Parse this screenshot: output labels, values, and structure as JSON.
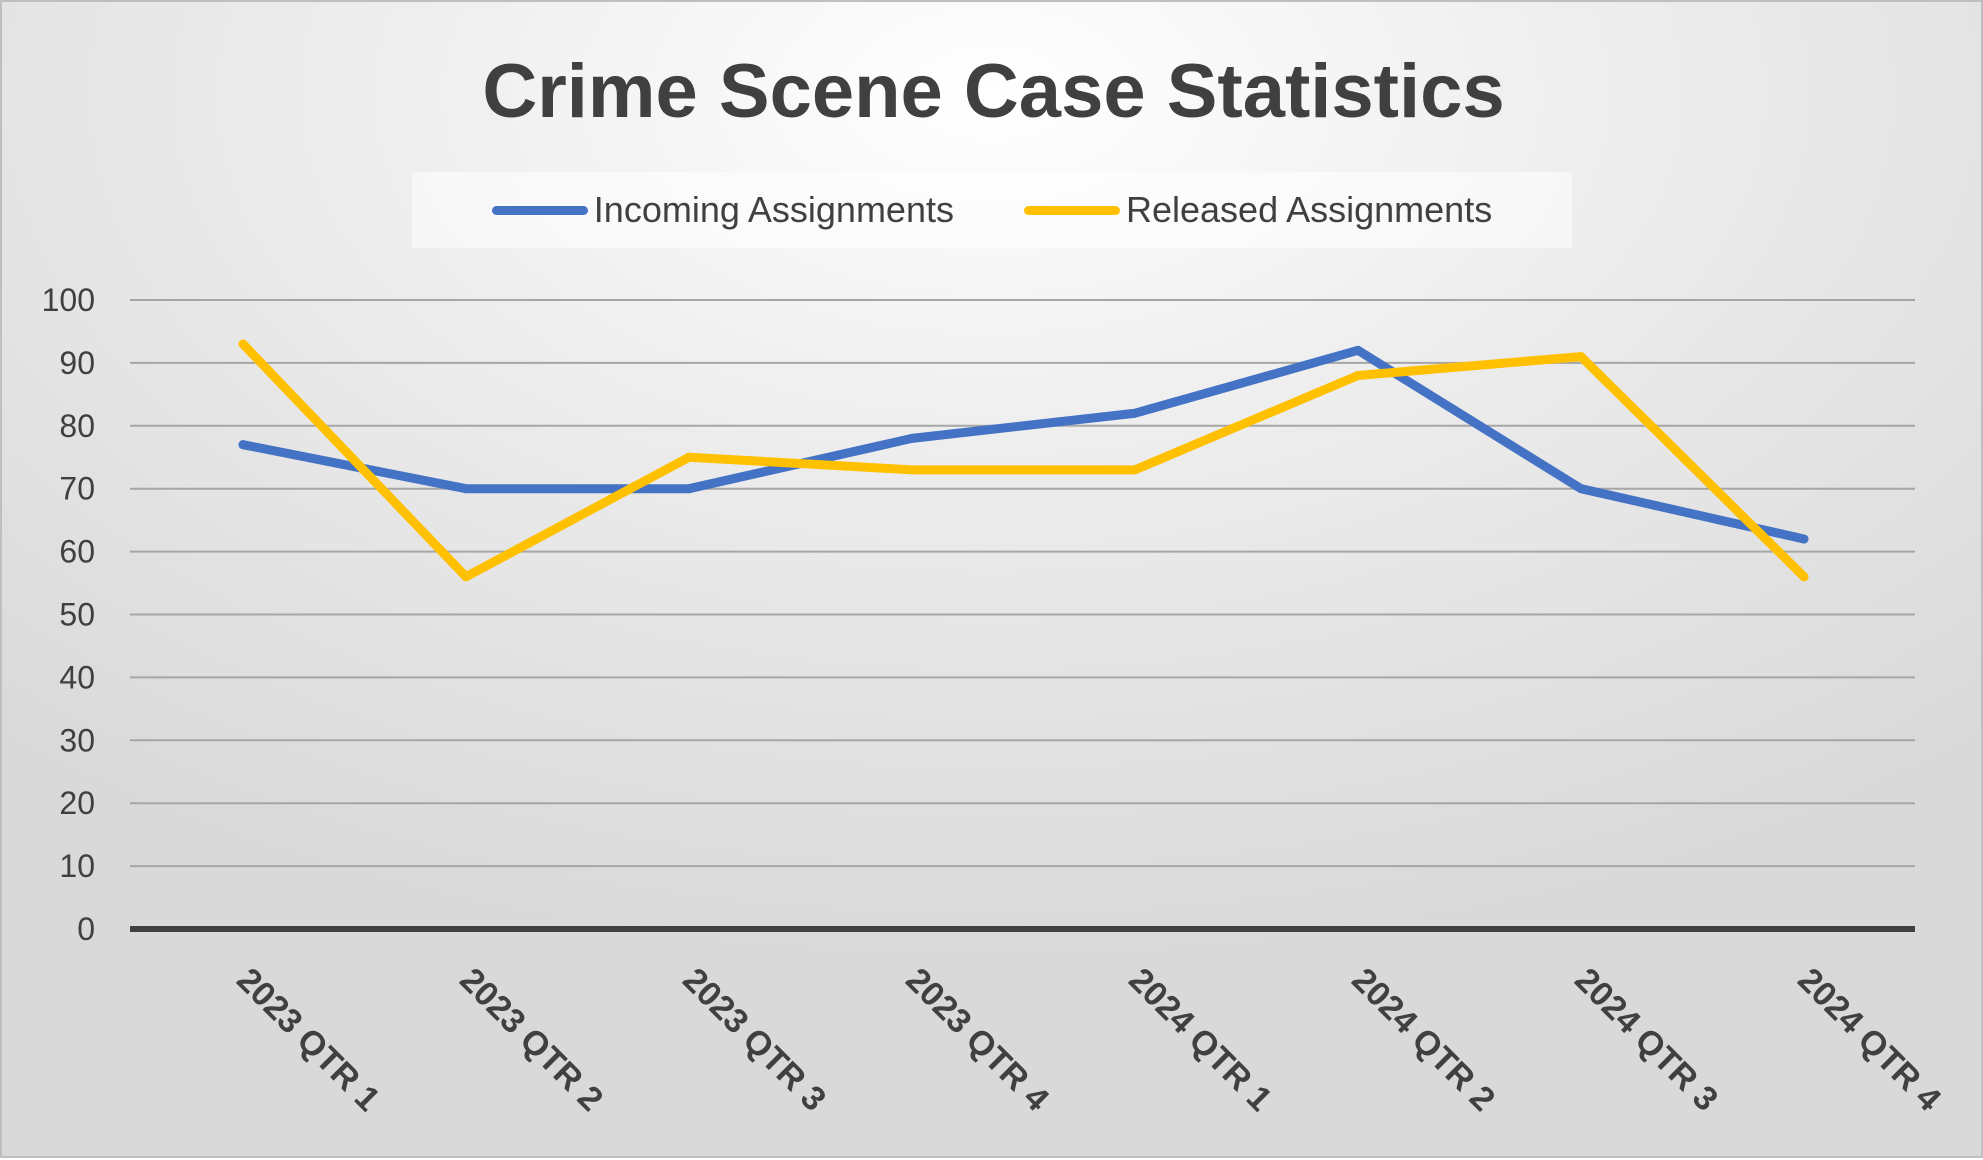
{
  "chart_data": {
    "type": "line",
    "title": "Crime Scene Case Statistics",
    "xlabel": "",
    "ylabel": "",
    "categories": [
      "2023 QTR 1",
      "2023 QTR 2",
      "2023 QTR 3",
      "2023 QTR 4",
      "2024 QTR 1",
      "2024 QTR 2",
      "2024 QTR 3",
      "2024 QTR 4"
    ],
    "series": [
      {
        "name": "Incoming Assignments",
        "color": "#4472C4",
        "values": [
          77,
          70,
          70,
          78,
          82,
          92,
          70,
          62
        ]
      },
      {
        "name": "Released Assignments",
        "color": "#FFC000",
        "values": [
          93,
          56,
          75,
          73,
          73,
          88,
          91,
          56
        ]
      }
    ],
    "ylim": [
      0,
      100
    ],
    "yticks": [
      0,
      10,
      20,
      30,
      40,
      50,
      60,
      70,
      80,
      90,
      100
    ],
    "grid": true,
    "legend_position": "top"
  }
}
